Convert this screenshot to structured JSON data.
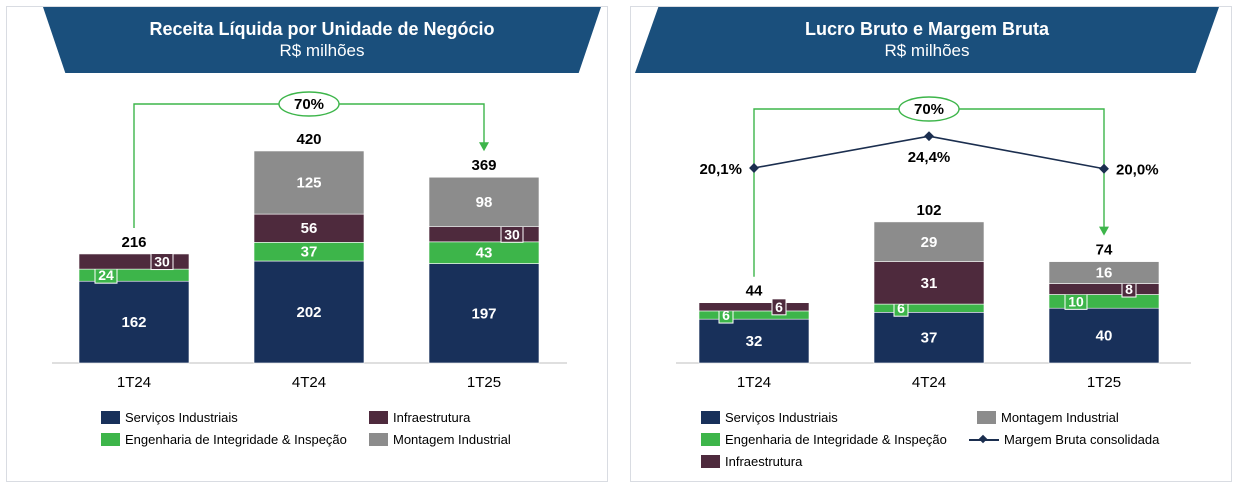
{
  "colors": {
    "servicos": "#18305a",
    "engenharia": "#3db54a",
    "infraestrutura": "#4e2a3d",
    "montagem": "#8c8c8c",
    "margem": "#1b2e4f",
    "banner": "#1a4f7c",
    "arrow": "#3db54a"
  },
  "chart_data": [
    {
      "type": "bar",
      "stacked": true,
      "title": "Receita Líquida por Unidade de Negócio",
      "subtitle": "R$ milhões",
      "categories": [
        "1T24",
        "4T24",
        "1T25"
      ],
      "series": [
        {
          "name": "Serviços Industriais",
          "values": [
            162,
            202,
            197
          ]
        },
        {
          "name": "Engenharia de Integridade & Inspeção",
          "values": [
            24,
            37,
            43
          ]
        },
        {
          "name": "Infraestrutura",
          "values": [
            30,
            56,
            30
          ]
        },
        {
          "name": "Montagem Industrial",
          "values": [
            0,
            125,
            98
          ]
        }
      ],
      "totals": [
        "216",
        "420",
        "369"
      ],
      "growth_label": "70%",
      "growth_from": "1T24",
      "growth_to": "1T25",
      "legend": {
        "position": "bottom",
        "items": [
          "Serviços Industriais",
          "Infraestrutura",
          "Engenharia de Integridade & Inspeção",
          "Montagem Industrial"
        ]
      }
    },
    {
      "type": "bar",
      "stacked": true,
      "title": "Lucro Bruto e Margem Bruta",
      "subtitle": "R$ milhões",
      "categories": [
        "1T24",
        "4T24",
        "1T25"
      ],
      "series": [
        {
          "name": "Serviços Industriais",
          "values": [
            32,
            37,
            40
          ]
        },
        {
          "name": "Engenharia de Integridade & Inspeção",
          "values": [
            6,
            6,
            10
          ]
        },
        {
          "name": "Infraestrutura",
          "values": [
            6,
            31,
            8
          ]
        },
        {
          "name": "Montagem Industrial",
          "values": [
            0,
            29,
            16
          ]
        }
      ],
      "totals": [
        "44",
        "102",
        "74"
      ],
      "line_series": {
        "name": "Margem Bruta consolidada",
        "values": [
          20.1,
          24.4,
          20.0
        ],
        "labels": [
          "20,1%",
          "24,4%",
          "20,0%"
        ]
      },
      "growth_label": "70%",
      "growth_from": "1T24",
      "growth_to": "1T25",
      "legend": {
        "position": "bottom",
        "items": [
          "Serviços Industriais",
          "Montagem Industrial",
          "Engenharia de Integridade & Inspeção",
          "Margem Bruta consolidada",
          "Infraestrutura"
        ]
      }
    }
  ]
}
